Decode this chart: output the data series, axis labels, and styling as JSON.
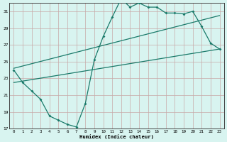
{
  "xlabel": "Humidex (Indice chaleur)",
  "bg_color": "#d8f4f0",
  "line_color": "#1a7a6a",
  "grid_color": "#c8a8a8",
  "xlim": [
    -0.5,
    23.5
  ],
  "ylim": [
    17,
    32
  ],
  "yticks": [
    17,
    19,
    21,
    23,
    25,
    27,
    29,
    31
  ],
  "xticks": [
    0,
    1,
    2,
    3,
    4,
    5,
    6,
    7,
    8,
    9,
    10,
    11,
    12,
    13,
    14,
    15,
    16,
    17,
    18,
    19,
    20,
    21,
    22,
    23
  ],
  "line1_x": [
    0,
    1,
    2,
    3,
    4,
    5,
    6,
    7,
    8,
    9,
    10,
    11,
    12,
    13,
    14,
    15,
    16,
    17,
    18,
    19,
    20,
    21,
    22,
    23
  ],
  "line1_y": [
    24.0,
    22.5,
    21.5,
    20.5,
    18.5,
    18.0,
    17.5,
    17.2,
    20.0,
    25.2,
    28.0,
    30.3,
    32.5,
    31.5,
    32.0,
    31.5,
    31.5,
    30.8,
    30.8,
    30.7,
    31.0,
    29.2,
    27.2,
    26.5
  ],
  "line2_x": [
    0,
    23
  ],
  "line2_y": [
    22.5,
    26.5
  ],
  "line3_x": [
    0,
    23
  ],
  "line3_y": [
    24.2,
    30.5
  ]
}
